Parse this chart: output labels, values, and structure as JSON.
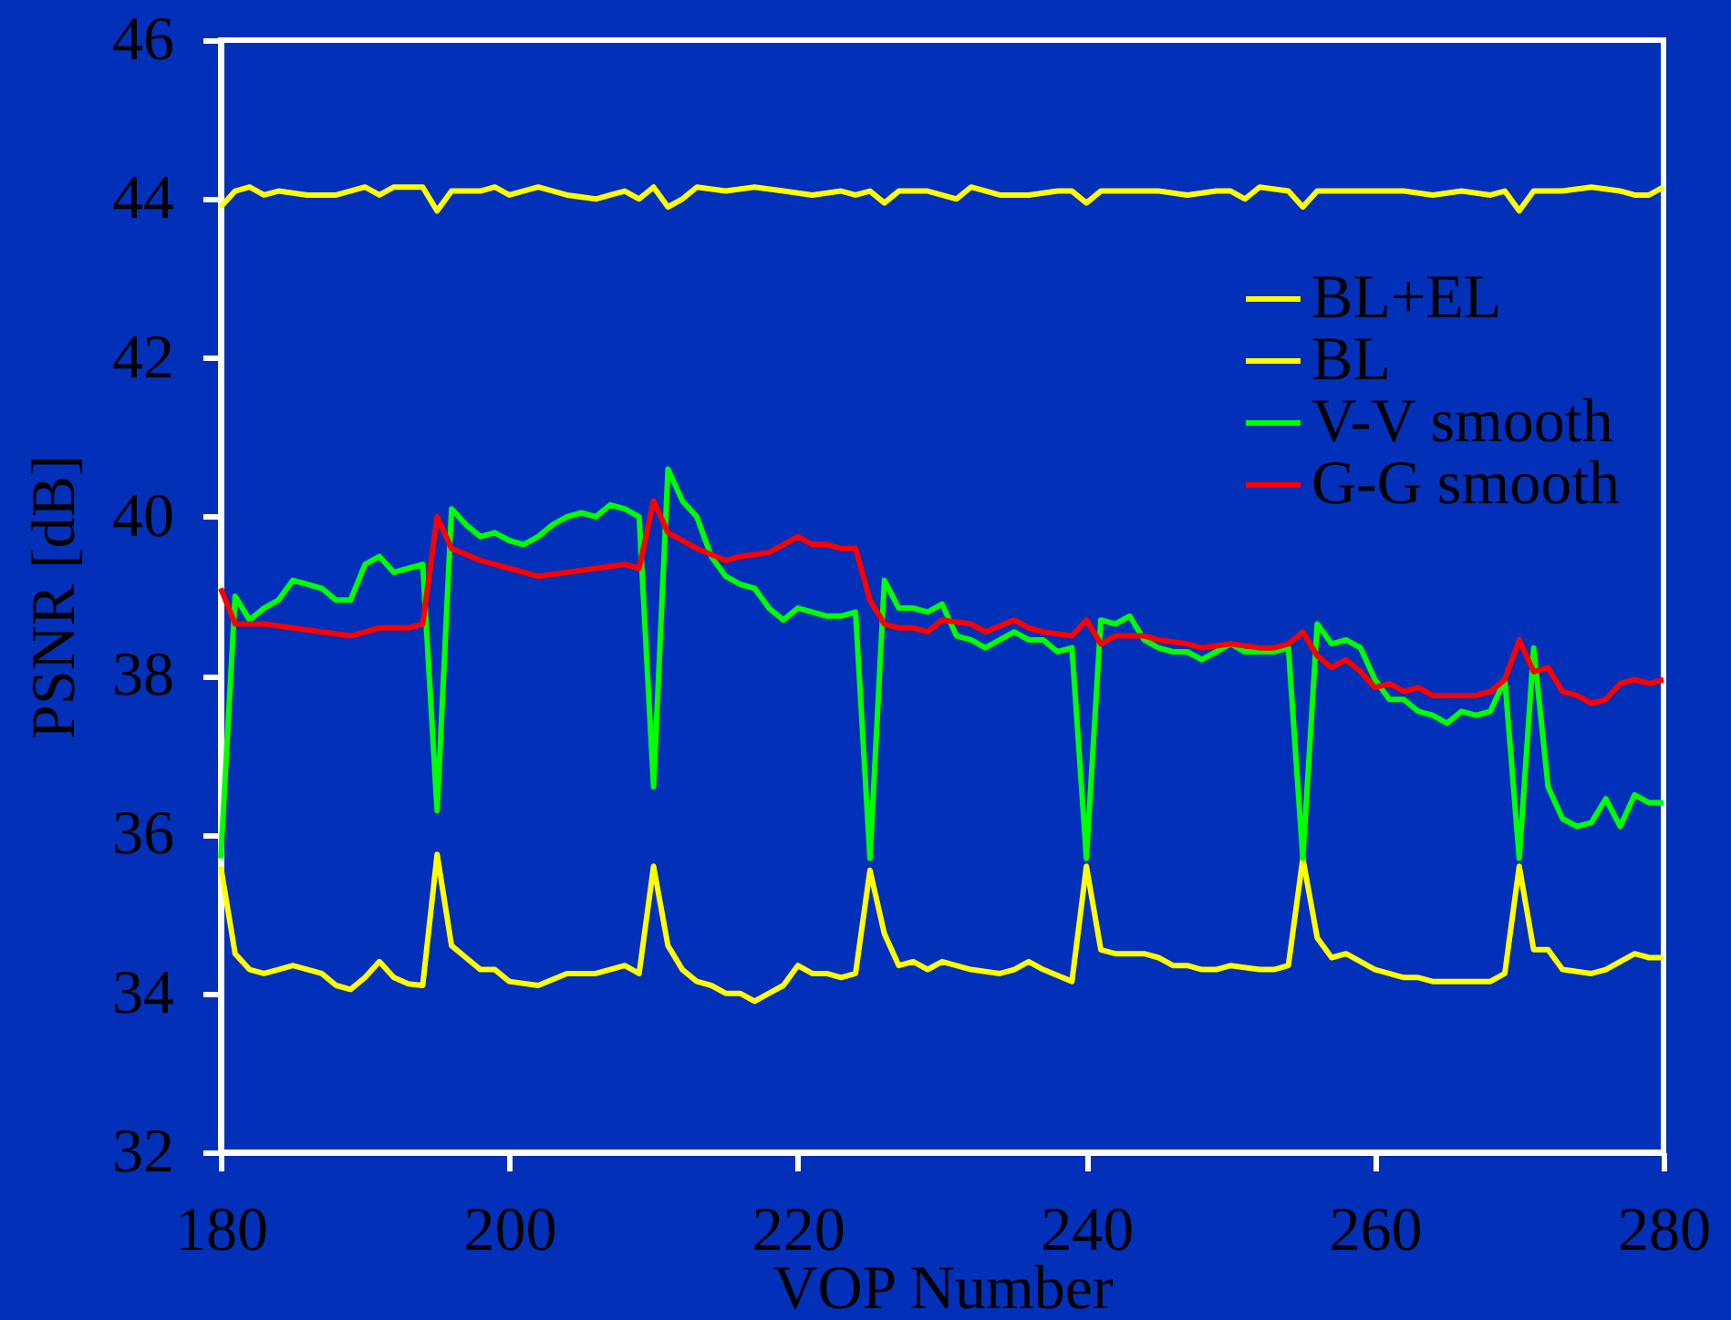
{
  "chart_data": {
    "type": "line",
    "xlabel": "VOP Number",
    "ylabel": "PSNR [dB]",
    "xlim": [
      180,
      280
    ],
    "ylim": [
      32,
      46
    ],
    "xticks": [
      180,
      200,
      220,
      240,
      260,
      280
    ],
    "yticks": [
      32,
      34,
      36,
      38,
      40,
      42,
      44,
      46
    ],
    "grid": false,
    "legend": "top right",
    "marker": "none",
    "line_style": "solid",
    "series": [
      {
        "name": "BL+EL",
        "color": "#ffff00",
        "x": [
          180,
          181,
          182,
          183,
          184,
          186,
          188,
          190,
          191,
          192,
          194,
          195,
          196,
          198,
          199,
          200,
          202,
          204,
          206,
          207,
          208,
          209,
          210,
          211,
          212,
          213,
          215,
          217,
          219,
          221,
          223,
          224,
          225,
          226,
          227,
          229,
          231,
          232,
          234,
          236,
          238,
          239,
          240,
          241,
          243,
          245,
          247,
          249,
          250,
          251,
          252,
          254,
          255,
          256,
          258,
          260,
          262,
          264,
          266,
          268,
          269,
          270,
          271,
          273,
          275,
          277,
          278,
          279,
          280
        ],
        "values": [
          43.9,
          44.1,
          44.15,
          44.05,
          44.1,
          44.05,
          44.05,
          44.15,
          44.05,
          44.15,
          44.15,
          43.85,
          44.1,
          44.1,
          44.15,
          44.05,
          44.15,
          44.05,
          44.0,
          44.05,
          44.1,
          44.0,
          44.15,
          43.9,
          44.0,
          44.15,
          44.1,
          44.15,
          44.1,
          44.05,
          44.1,
          44.05,
          44.1,
          43.95,
          44.1,
          44.1,
          44.0,
          44.15,
          44.05,
          44.05,
          44.1,
          44.1,
          43.95,
          44.1,
          44.1,
          44.1,
          44.05,
          44.1,
          44.1,
          44.0,
          44.15,
          44.1,
          43.9,
          44.1,
          44.1,
          44.1,
          44.1,
          44.05,
          44.1,
          44.05,
          44.1,
          43.85,
          44.1,
          44.1,
          44.15,
          44.1,
          44.05,
          44.05,
          44.15
        ]
      },
      {
        "name": "BL",
        "color": "#ffff00",
        "x": [
          180,
          181,
          182,
          183,
          184,
          185,
          187,
          188,
          189,
          190,
          191,
          192,
          193,
          194,
          195,
          196,
          198,
          199,
          200,
          202,
          204,
          206,
          208,
          209,
          210,
          211,
          212,
          213,
          214,
          215,
          216,
          217,
          218,
          219,
          220,
          221,
          222,
          223,
          224,
          225,
          226,
          227,
          228,
          229,
          230,
          232,
          234,
          235,
          236,
          237,
          239,
          240,
          241,
          242,
          244,
          245,
          246,
          247,
          248,
          249,
          250,
          252,
          253,
          254,
          255,
          256,
          257,
          258,
          259,
          260,
          261,
          262,
          263,
          264,
          266,
          268,
          269,
          270,
          271,
          272,
          273,
          275,
          276,
          278,
          279,
          280
        ],
        "values": [
          35.6,
          34.5,
          34.3,
          34.25,
          34.3,
          34.35,
          34.25,
          34.1,
          34.05,
          34.2,
          34.4,
          34.2,
          34.12,
          34.1,
          35.75,
          34.6,
          34.3,
          34.3,
          34.15,
          34.1,
          34.25,
          34.25,
          34.35,
          34.25,
          35.6,
          34.6,
          34.3,
          34.15,
          34.1,
          34.0,
          34.0,
          33.9,
          34.0,
          34.1,
          34.35,
          34.25,
          34.25,
          34.2,
          34.25,
          35.55,
          34.75,
          34.35,
          34.4,
          34.3,
          34.4,
          34.3,
          34.25,
          34.3,
          34.4,
          34.3,
          34.15,
          35.6,
          34.55,
          34.5,
          34.5,
          34.45,
          34.35,
          34.35,
          34.3,
          34.3,
          34.35,
          34.3,
          34.3,
          34.35,
          35.7,
          34.7,
          34.45,
          34.5,
          34.4,
          34.3,
          34.25,
          34.2,
          34.2,
          34.15,
          34.15,
          34.15,
          34.25,
          35.6,
          34.55,
          34.55,
          34.3,
          34.25,
          34.3,
          34.5,
          34.45,
          34.45
        ]
      },
      {
        "name": "V-V smooth",
        "color": "#00ff00",
        "x": [
          180,
          181,
          182,
          183,
          184,
          185,
          186,
          187,
          188,
          189,
          190,
          191,
          192,
          193,
          194,
          195,
          196,
          197,
          198,
          199,
          200,
          201,
          202,
          203,
          204,
          205,
          206,
          207,
          208,
          209,
          210,
          211,
          212,
          213,
          214,
          215,
          216,
          217,
          218,
          219,
          220,
          221,
          222,
          223,
          224,
          225,
          226,
          227,
          228,
          229,
          230,
          231,
          232,
          233,
          234,
          235,
          236,
          237,
          238,
          239,
          240,
          241,
          242,
          243,
          244,
          245,
          246,
          247,
          248,
          249,
          250,
          251,
          252,
          253,
          254,
          255,
          256,
          257,
          258,
          259,
          260,
          261,
          262,
          263,
          264,
          265,
          266,
          267,
          268,
          269,
          270,
          271,
          272,
          273,
          274,
          275,
          276,
          277,
          278,
          279,
          280
        ],
        "values": [
          35.7,
          39.0,
          38.7,
          38.85,
          38.95,
          39.2,
          39.15,
          39.1,
          38.95,
          38.95,
          39.4,
          39.5,
          39.3,
          39.35,
          39.4,
          36.3,
          40.1,
          39.9,
          39.75,
          39.8,
          39.7,
          39.65,
          39.75,
          39.9,
          40.0,
          40.05,
          40.0,
          40.15,
          40.1,
          40.0,
          36.6,
          40.6,
          40.2,
          40.0,
          39.5,
          39.25,
          39.15,
          39.1,
          38.85,
          38.7,
          38.85,
          38.8,
          38.75,
          38.75,
          38.8,
          35.7,
          39.2,
          38.85,
          38.85,
          38.8,
          38.9,
          38.5,
          38.45,
          38.35,
          38.45,
          38.55,
          38.45,
          38.45,
          38.3,
          38.35,
          35.7,
          38.7,
          38.65,
          38.75,
          38.45,
          38.35,
          38.3,
          38.3,
          38.2,
          38.3,
          38.4,
          38.3,
          38.3,
          38.3,
          38.35,
          35.7,
          38.65,
          38.4,
          38.45,
          38.35,
          37.95,
          37.7,
          37.7,
          37.55,
          37.5,
          37.4,
          37.55,
          37.5,
          37.55,
          37.95,
          35.7,
          38.35,
          36.6,
          36.2,
          36.1,
          36.15,
          36.45,
          36.1,
          36.5,
          36.4,
          36.4
        ]
      },
      {
        "name": "G-G smooth",
        "color": "#ff0000",
        "x": [
          180,
          181,
          182,
          183,
          185,
          187,
          189,
          191,
          193,
          194,
          195,
          196,
          198,
          199,
          200,
          202,
          204,
          206,
          208,
          209,
          210,
          211,
          213,
          215,
          216,
          218,
          220,
          221,
          222,
          223,
          224,
          225,
          226,
          227,
          228,
          229,
          230,
          232,
          233,
          235,
          236,
          237,
          239,
          240,
          241,
          242,
          244,
          245,
          247,
          248,
          250,
          252,
          253,
          254,
          255,
          256,
          257,
          258,
          259,
          260,
          261,
          262,
          263,
          264,
          266,
          267,
          268,
          269,
          270,
          271,
          272,
          273,
          274,
          275,
          276,
          277,
          278,
          279,
          280
        ],
        "values": [
          39.1,
          38.65,
          38.65,
          38.65,
          38.6,
          38.55,
          38.5,
          38.6,
          38.6,
          38.65,
          40.0,
          39.6,
          39.45,
          39.4,
          39.35,
          39.25,
          39.3,
          39.35,
          39.4,
          39.35,
          40.2,
          39.8,
          39.6,
          39.45,
          39.5,
          39.55,
          39.75,
          39.65,
          39.65,
          39.6,
          39.6,
          38.95,
          38.65,
          38.6,
          38.6,
          38.55,
          38.7,
          38.65,
          38.55,
          38.7,
          38.6,
          38.55,
          38.5,
          38.7,
          38.4,
          38.5,
          38.5,
          38.45,
          38.4,
          38.35,
          38.4,
          38.35,
          38.35,
          38.4,
          38.55,
          38.25,
          38.1,
          38.2,
          38.05,
          37.85,
          37.9,
          37.8,
          37.85,
          37.75,
          37.75,
          37.75,
          37.8,
          37.95,
          38.45,
          38.05,
          38.1,
          37.8,
          37.75,
          37.65,
          37.7,
          37.9,
          37.95,
          37.9,
          37.95
        ]
      }
    ]
  }
}
